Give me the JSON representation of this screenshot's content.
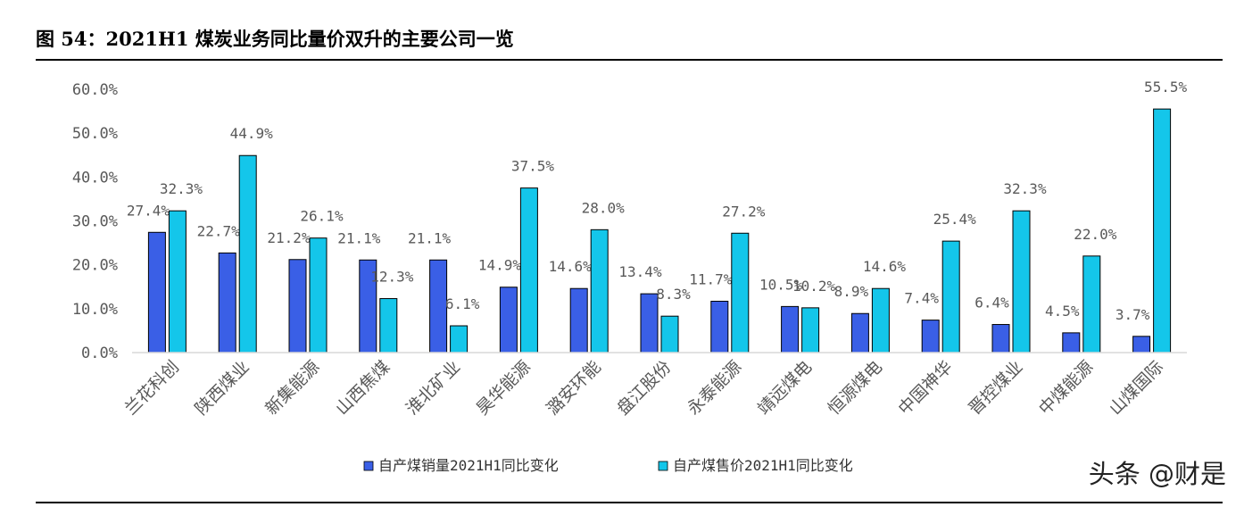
{
  "header": {
    "title": "图 54：2021H1 煤炭业务同比量价双升的主要公司一览"
  },
  "watermark": {
    "text": "头条 @财是"
  },
  "colors": {
    "series1": "#3a5fe6",
    "series2": "#14c6ea",
    "axis": "#d9d9d9"
  },
  "chart_data": {
    "type": "bar",
    "title": "",
    "categories": [
      "兰花科创",
      "陕西煤业",
      "新集能源",
      "山西焦煤",
      "淮北矿业",
      "昊华能源",
      "潞安环能",
      "盘江股份",
      "永泰能源",
      "靖远煤电",
      "恒源煤电",
      "中国神华",
      "晋控煤业",
      "中煤能源",
      "山煤国际"
    ],
    "series": [
      {
        "name": "自产煤销量2021H1同比变化",
        "values": [
          27.4,
          22.7,
          21.2,
          21.1,
          21.1,
          14.9,
          14.6,
          13.4,
          11.7,
          10.5,
          8.9,
          7.4,
          6.4,
          4.5,
          3.7
        ],
        "labels": [
          "27.4%",
          "22.7%",
          "21.2%",
          "21.1%",
          "21.1%",
          "14.9%",
          "14.6%",
          "13.4%",
          "11.7%",
          "10.5%",
          "8.9%",
          "7.4%",
          "6.4%",
          "4.5%",
          "3.7%"
        ]
      },
      {
        "name": "自产煤售价2021H1同比变化",
        "values": [
          32.3,
          44.9,
          26.1,
          12.3,
          6.1,
          37.5,
          28.0,
          8.3,
          27.2,
          10.2,
          14.6,
          25.4,
          32.3,
          22.0,
          55.5
        ],
        "labels": [
          "32.3%",
          "44.9%",
          "26.1%",
          "12.3%",
          "6.1%",
          "37.5%",
          "28.0%",
          "8.3%",
          "27.2%",
          "10.2%",
          "14.6%",
          "25.4%",
          "32.3%",
          "22.0%",
          "55.5%"
        ]
      }
    ],
    "ylim": [
      0,
      60
    ],
    "yticks": [
      0,
      10,
      20,
      30,
      40,
      50,
      60
    ],
    "ytick_labels": [
      "0.0%",
      "10.0%",
      "20.0%",
      "30.0%",
      "40.0%",
      "50.0%",
      "60.0%"
    ],
    "grid": false,
    "legend": "bottom"
  }
}
